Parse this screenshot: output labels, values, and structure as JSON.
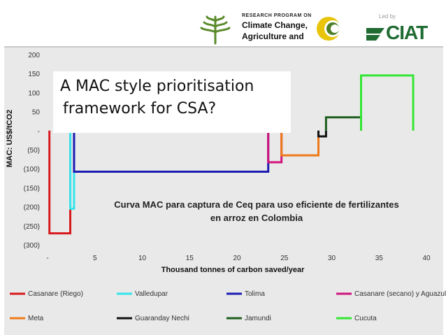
{
  "header": {
    "program_line1": "RESEARCH PROGRAM ON",
    "program_line2": "Climate Change,",
    "program_line3": "Agriculture and",
    "led_by": "Led by",
    "ciat": "CIAT"
  },
  "overlay": {
    "line1": "A MAC style prioritisation",
    "line2": "framework for CSA?"
  },
  "chart_data": {
    "type": "line",
    "title": "",
    "subtitle_line1": "Curva MAC para captura de Ceq para uso eficiente de fertilizantes",
    "subtitle_line2": "en arroz en Colombia",
    "xlabel": "Thousand tonnes of carbon saved/year",
    "ylabel": "MAC: US$/tCO2",
    "xlim": [
      0,
      40
    ],
    "ylim": [
      -300,
      200
    ],
    "x_ticks": [
      "-",
      "5",
      "10",
      "15",
      "20",
      "25",
      "30",
      "35",
      "40"
    ],
    "y_ticks": [
      "200",
      "150",
      "100",
      "50",
      "-",
      "(50)",
      "(100)",
      "(150)",
      "(200)",
      "(250)",
      "(300)"
    ],
    "series": [
      {
        "name": "Casanare (Riego)",
        "color": "#d7191c",
        "x_start": 0.2,
        "x_end": 2.4,
        "value": -270
      },
      {
        "name": "Valledupar",
        "color": "#33e6ec",
        "x_start": 2.4,
        "x_end": 2.8,
        "value": -205
      },
      {
        "name": "Tolima",
        "color": "#1c1cb2",
        "x_start": 2.8,
        "x_end": 23.3,
        "value": -108
      },
      {
        "name": "Casanare (secano) y Aguazul",
        "color": "#d0157a",
        "x_start": 23.3,
        "x_end": 24.7,
        "value": -83
      },
      {
        "name": "Meta",
        "color": "#ee7a1a",
        "x_start": 24.7,
        "x_end": 28.6,
        "value": -65
      },
      {
        "name": "Guaranday Nechi",
        "color": "#111111",
        "x_start": 28.6,
        "x_end": 29.4,
        "value": -15
      },
      {
        "name": "Jamundi",
        "color": "#1e5f1e",
        "x_start": 29.4,
        "x_end": 33.1,
        "value": 35
      },
      {
        "name": "Cucuta",
        "color": "#33e633",
        "x_start": 33.1,
        "x_end": 38.6,
        "value": 145
      }
    ]
  }
}
